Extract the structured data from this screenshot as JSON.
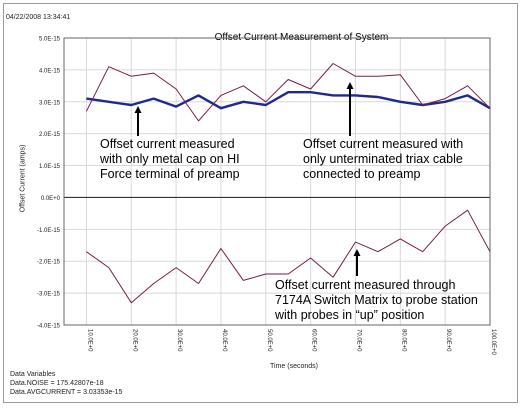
{
  "header": {
    "timestamp": "04/22/2008 13:34:41"
  },
  "chart_data": {
    "type": "line",
    "title": "Offset Current Measurement of System",
    "xlabel": "Time (seconds)",
    "ylabel": "Offset Current (amps)",
    "xlim": [
      5,
      100
    ],
    "ylim": [
      -4e-15,
      5e-15
    ],
    "grid": true,
    "x_ticks": [
      "10.0E+0",
      "20.0E+0",
      "30.0E+0",
      "40.0E+0",
      "50.0E+0",
      "60.0E+0",
      "70.0E+0",
      "80.0E+0",
      "90.0E+0",
      "100.0E+0"
    ],
    "y_ticks": [
      "5.0E-15",
      "4.0E-15",
      "3.0E-15",
      "2.0E-15",
      "1.0E-15",
      "0.0E+0",
      "-1.0E-15",
      "-2.0E-15",
      "-3.0E-15",
      "-4.0E-15"
    ],
    "series": [
      {
        "color": "#1f2a8c",
        "x": [
          10,
          15,
          20,
          25,
          30,
          35,
          40,
          45,
          50,
          55,
          60,
          65,
          70,
          75,
          80,
          85,
          90,
          95,
          100
        ],
        "y": [
          3.1e-15,
          3e-15,
          2.9e-15,
          3.1e-15,
          2.85e-15,
          3.2e-15,
          2.8e-15,
          3e-15,
          2.9e-15,
          3.3e-15,
          3.3e-15,
          3.2e-15,
          3.2e-15,
          3.15e-15,
          3e-15,
          2.9e-15,
          3e-15,
          3.2e-15,
          2.8e-15
        ]
      },
      {
        "color": "#7a1a4a",
        "x": [
          10,
          15,
          20,
          25,
          30,
          35,
          40,
          45,
          50,
          55,
          60,
          65,
          70,
          75,
          80,
          85,
          90,
          95,
          100
        ],
        "y": [
          2.7e-15,
          4.1e-15,
          3.8e-15,
          3.9e-15,
          3.4e-15,
          2.4e-15,
          3.2e-15,
          3.5e-15,
          3e-15,
          3.7e-15,
          3.4e-15,
          4.2e-15,
          3.8e-15,
          3.8e-15,
          3.85e-15,
          2.9e-15,
          3.1e-15,
          3.5e-15,
          2.8e-15
        ]
      },
      {
        "color": "#7a1a4a",
        "x": [
          10,
          15,
          20,
          25,
          30,
          35,
          40,
          45,
          50,
          55,
          60,
          65,
          70,
          75,
          80,
          85,
          90,
          95,
          100
        ],
        "y": [
          -1.7e-15,
          -2.2e-15,
          -3.3e-15,
          -2.7e-15,
          -2.2e-15,
          -2.7e-15,
          -1.6e-15,
          -2.6e-15,
          -2.4e-15,
          -2.4e-15,
          -1.9e-15,
          -2.5e-15,
          -1.4e-15,
          -1.7e-15,
          -1.3e-15,
          -1.7e-15,
          -9e-16,
          -4e-16,
          -1.7e-15
        ]
      }
    ],
    "annotations": [
      {
        "lines": [
          "Offset current measured",
          "with only metal cap on HI",
          "Force terminal of preamp"
        ]
      },
      {
        "lines": [
          "Offset current measured with",
          "only unterminated triax cable",
          "connected to preamp"
        ]
      },
      {
        "lines": [
          "Offset current measured through",
          "7174A Switch Matrix to probe station",
          "with probes in “up” position"
        ]
      }
    ]
  },
  "footer": {
    "line1": "Data Variables",
    "line2": "Data.NOISE = 175.42807e-18",
    "line3": "Data.AVGCURRENT = 3.03353e-15"
  }
}
